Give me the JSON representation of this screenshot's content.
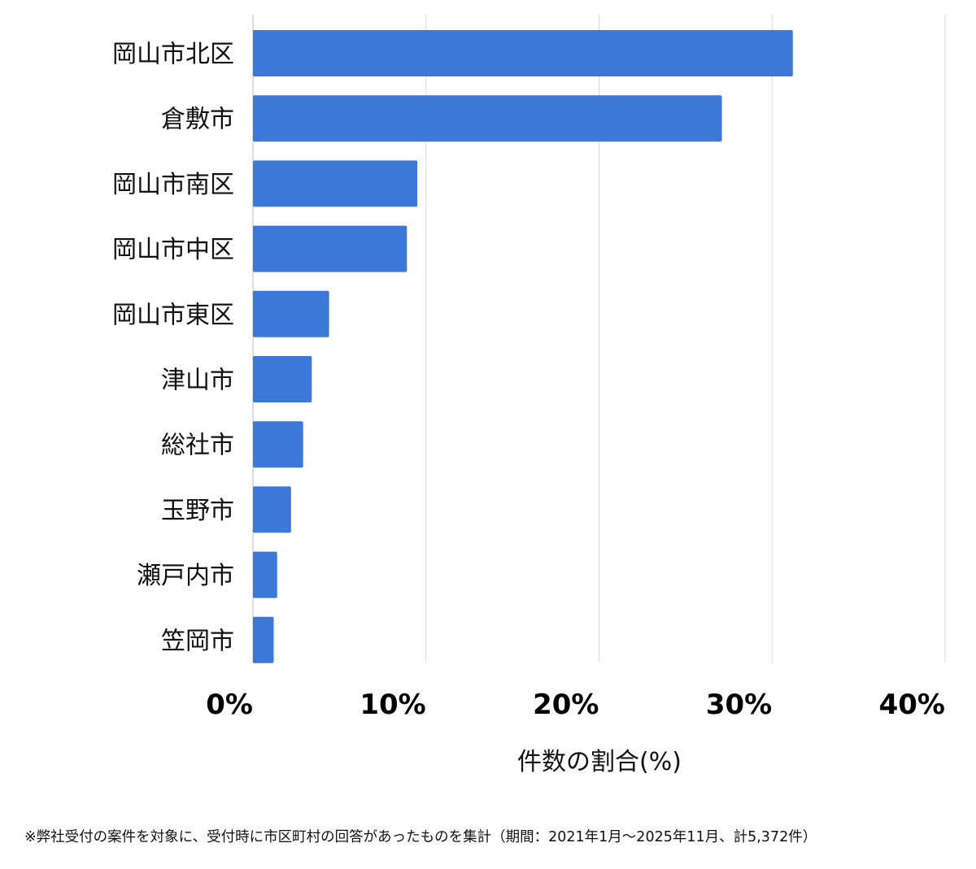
{
  "chart_data": {
    "type": "bar",
    "orientation": "horizontal",
    "categories": [
      "岡山市北区",
      "倉敷市",
      "岡山市南区",
      "岡山市中区",
      "岡山市東区",
      "津山市",
      "総社市",
      "玉野市",
      "瀬戸内市",
      "笠岡市"
    ],
    "values": [
      31.2,
      27.1,
      9.5,
      8.9,
      4.4,
      3.4,
      2.9,
      2.2,
      1.4,
      1.2
    ],
    "xlabel": "件数の割合(%)",
    "ylabel": "",
    "xlim": [
      0,
      40
    ],
    "xticks": [
      "0%",
      "10%",
      "20%",
      "30%",
      "40%"
    ],
    "grid": true,
    "bar_color": "#3c78d8",
    "grid_color": "#d9d9d9"
  },
  "footnote": "※弊社受付の案件を対象に、受付時に市区町村の回答があったものを集計（期間：2021年1月〜2025年11月、計5,372件）"
}
